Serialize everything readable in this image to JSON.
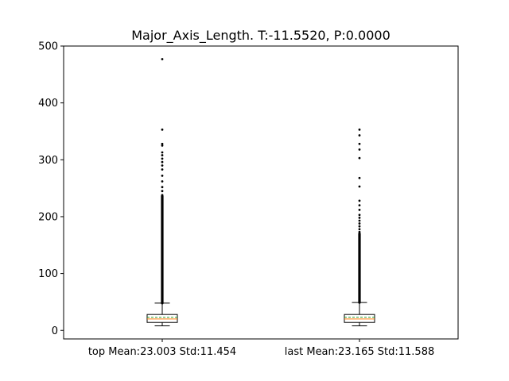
{
  "chart_data": {
    "type": "box",
    "title": "Major_Axis_Length. T:-11.5520, P:0.0000",
    "xlabel": "",
    "ylabel": "",
    "ylim": [
      -15,
      500
    ],
    "yticks": [
      0,
      100,
      200,
      300,
      400,
      500
    ],
    "grid": false,
    "categories": [
      "top Mean:23.003 Std:11.454",
      "last Mean:23.165 Std:11.588"
    ],
    "boxes": [
      {
        "category": "top Mean:23.003 Std:11.454",
        "whisker_low": 8,
        "q1": 14,
        "median": 20,
        "mean": 23.003,
        "q3": 28,
        "whisker_high": 48,
        "outlier_dense_range": [
          48,
          236
        ],
        "outliers_sparse": [
          238,
          245,
          252,
          262,
          272,
          283,
          290,
          296,
          302,
          308,
          313,
          325,
          328,
          353,
          477
        ]
      },
      {
        "category": "last Mean:23.165 Std:11.588",
        "whisker_low": 8,
        "q1": 14,
        "median": 20,
        "mean": 23.165,
        "q3": 28,
        "whisker_high": 49,
        "outlier_dense_range": [
          49,
          170
        ],
        "outliers_sparse": [
          173,
          178,
          183,
          188,
          193,
          198,
          203,
          212,
          220,
          228,
          253,
          268,
          303,
          318,
          328,
          343,
          353
        ]
      }
    ],
    "colors": {
      "box": "#000000",
      "median": "#ff7f0e",
      "mean": "#2ca02c",
      "outlier": "#000000"
    }
  }
}
